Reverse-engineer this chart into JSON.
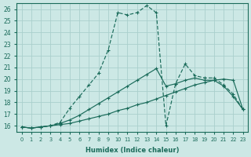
{
  "xlabel": "Humidex (Indice chaleur)",
  "background_color": "#cce8e5",
  "grid_color": "#aacfcc",
  "line_color": "#1a6b5a",
  "xlim": [
    -0.5,
    23.5
  ],
  "ylim": [
    15.5,
    26.5
  ],
  "yticks": [
    16,
    17,
    18,
    19,
    20,
    21,
    22,
    23,
    24,
    25,
    26
  ],
  "xticks": [
    0,
    1,
    2,
    3,
    4,
    5,
    6,
    7,
    8,
    9,
    10,
    11,
    12,
    13,
    14,
    15,
    16,
    17,
    18,
    19,
    20,
    21,
    22,
    23
  ],
  "s1_x": [
    0,
    1,
    2,
    3,
    4,
    5,
    6,
    7,
    8,
    9,
    10,
    11,
    12,
    13,
    14,
    15,
    16,
    17,
    18,
    19,
    20,
    21,
    22,
    23
  ],
  "s1_y": [
    15.9,
    15.8,
    15.9,
    16.0,
    16.1,
    16.2,
    16.4,
    16.6,
    16.8,
    17.0,
    17.3,
    17.5,
    17.8,
    18.0,
    18.3,
    18.6,
    18.9,
    19.2,
    19.5,
    19.7,
    19.9,
    20.0,
    19.9,
    17.4
  ],
  "s2_x": [
    0,
    1,
    2,
    3,
    4,
    5,
    6,
    7,
    8,
    9,
    10,
    11,
    12,
    13,
    14,
    15,
    16,
    17,
    18,
    19,
    20,
    21,
    22,
    23
  ],
  "s2_y": [
    15.9,
    15.8,
    15.9,
    16.0,
    16.2,
    16.5,
    16.9,
    17.4,
    17.9,
    18.4,
    18.9,
    19.4,
    19.9,
    20.4,
    20.9,
    19.4,
    19.6,
    19.9,
    20.1,
    19.9,
    19.9,
    19.4,
    18.5,
    17.4
  ],
  "s3_x": [
    0,
    1,
    2,
    3,
    4,
    5,
    6,
    7,
    8,
    9,
    10,
    11,
    12,
    13,
    14,
    15,
    16,
    17,
    18,
    19,
    20,
    21,
    22,
    23
  ],
  "s3_y": [
    15.9,
    15.8,
    15.9,
    16.0,
    16.3,
    17.5,
    18.5,
    19.5,
    20.5,
    22.5,
    25.7,
    25.5,
    25.7,
    26.3,
    25.7,
    16.0,
    19.6,
    21.3,
    20.3,
    20.1,
    20.1,
    19.5,
    18.7,
    17.4
  ]
}
